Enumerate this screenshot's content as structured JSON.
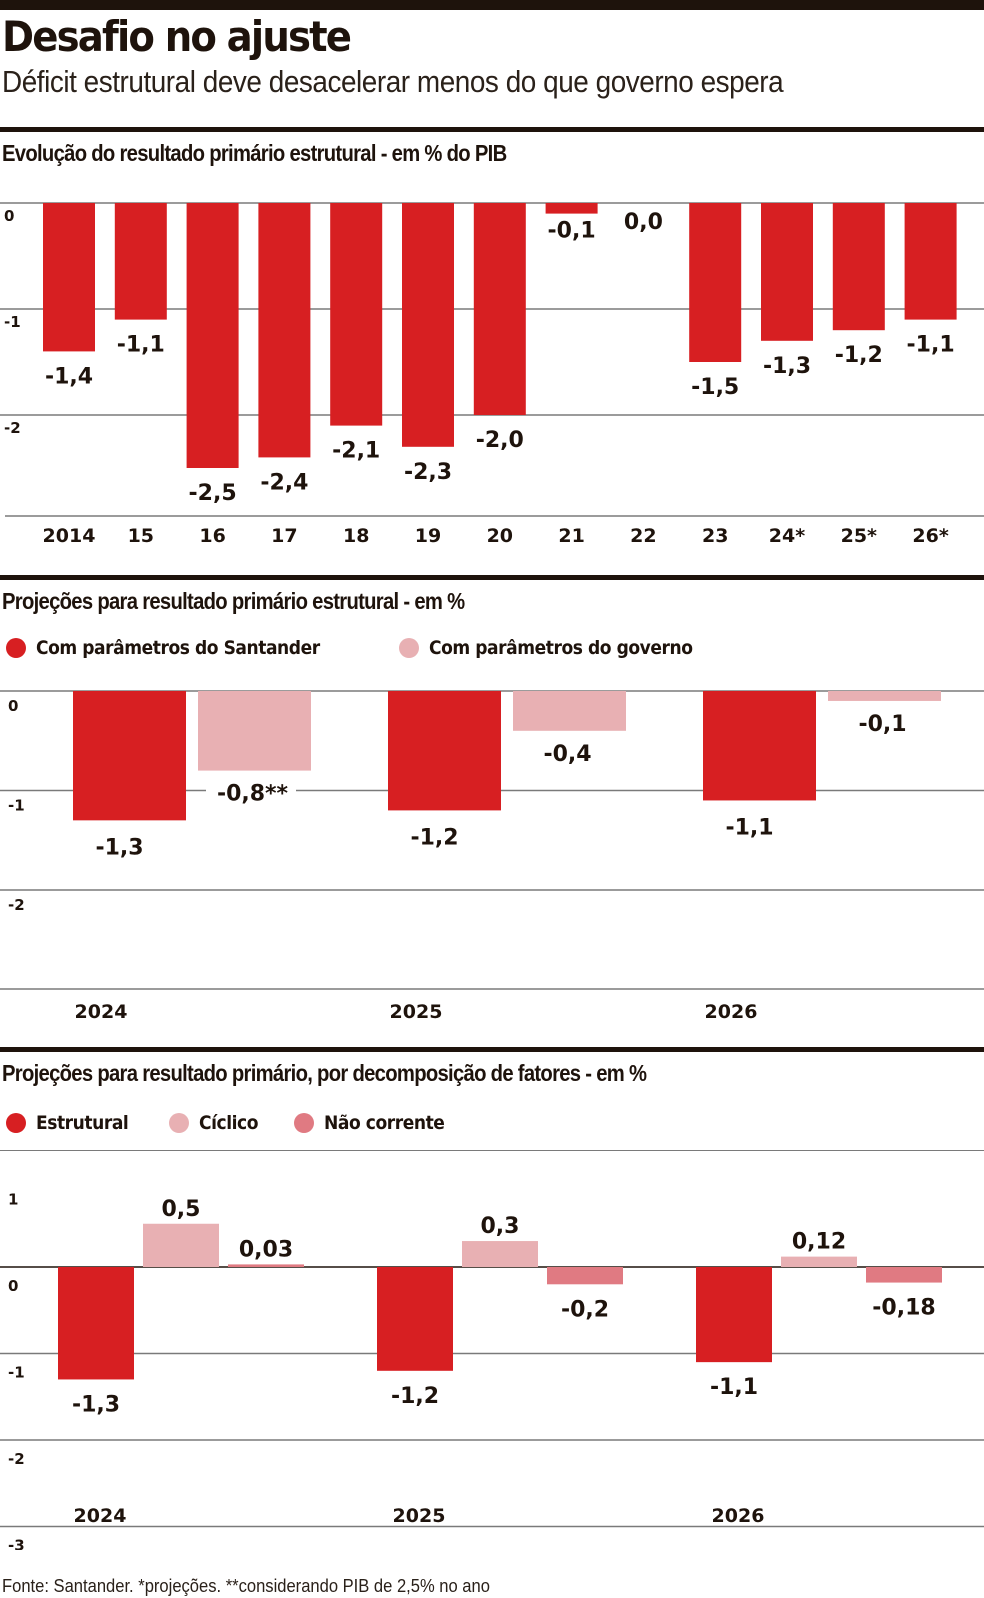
{
  "header": {
    "title": "Desafio no ajuste",
    "subtitle": "Déficit estrutural deve desacelerar menos do que governo espera"
  },
  "colors": {
    "ink": "#1e130c",
    "red": "#d71f22",
    "light_pink": "#e8b0b3",
    "mid_pink": "#e07a82",
    "grid": "#7a7a7a"
  },
  "footer": "Fonte: Santander. *projeções. **considerando PIB de 2,5% no ano",
  "chart_data": [
    {
      "type": "bar",
      "title": "Evolução do resultado primário estrutural - em % do PIB",
      "xlabel": "",
      "ylabel": "",
      "ylim": [
        -3,
        0
      ],
      "yticks": [
        0,
        -1,
        -2
      ],
      "ytick_labels": [
        "0",
        "-1",
        "-2"
      ],
      "grid": true,
      "categories": [
        "2014",
        "15",
        "16",
        "17",
        "18",
        "19",
        "20",
        "21",
        "22",
        "23",
        "24*",
        "25*",
        "26*"
      ],
      "values": [
        -1.4,
        -1.1,
        -2.5,
        -2.4,
        -2.1,
        -2.3,
        -2.0,
        -0.1,
        0.0,
        -1.5,
        -1.3,
        -1.2,
        -1.1
      ],
      "value_labels": [
        "-1,4",
        "-1,1",
        "-2,5",
        "-2,4",
        "-2,1",
        "-2,3",
        "-2,0",
        "-0,1",
        "0,0",
        "-1,5",
        "-1,3",
        "-1,2",
        "-1,1"
      ]
    },
    {
      "type": "bar",
      "title": "Projeções para resultado primário estrutural - em %",
      "xlabel": "",
      "ylabel": "",
      "ylim": [
        -3,
        0
      ],
      "yticks": [
        0,
        -1,
        -2
      ],
      "ytick_labels": [
        "0",
        "-1",
        "-2"
      ],
      "grid": true,
      "legend_position": "top-left",
      "categories": [
        "2024",
        "2025",
        "2026"
      ],
      "series": [
        {
          "name": "Com parâmetros do Santander",
          "color_key": "red",
          "values": [
            -1.3,
            -1.2,
            -1.1
          ],
          "value_labels": [
            "-1,3",
            "-1,2",
            "-1,1"
          ]
        },
        {
          "name": "Com parâmetros do governo",
          "color_key": "light_pink",
          "values": [
            -0.8,
            -0.4,
            -0.1
          ],
          "value_labels": [
            "-0,8**",
            "-0,4",
            "-0,1"
          ]
        }
      ]
    },
    {
      "type": "bar",
      "title": "Projeções para resultado primário, por decomposição de fatores - em %",
      "xlabel": "",
      "ylabel": "",
      "ylim": [
        -3,
        1
      ],
      "yticks": [
        1,
        0,
        -1,
        -2,
        -3
      ],
      "ytick_labels": [
        "1",
        "0",
        "-1",
        "-2",
        "-3"
      ],
      "grid": true,
      "legend_position": "top-left",
      "categories": [
        "2024",
        "2025",
        "2026"
      ],
      "series": [
        {
          "name": "Estrutural",
          "color_key": "red",
          "values": [
            -1.3,
            -1.2,
            -1.1
          ],
          "value_labels": [
            "-1,3",
            "-1,2",
            "-1,1"
          ]
        },
        {
          "name": "Cíclico",
          "color_key": "light_pink",
          "values": [
            0.5,
            0.3,
            0.12
          ],
          "value_labels": [
            "0,5",
            "0,3",
            "0,12"
          ]
        },
        {
          "name": "Não corrente",
          "color_key": "mid_pink",
          "values": [
            0.03,
            -0.2,
            -0.18
          ],
          "value_labels": [
            "0,03",
            "-0,2",
            "-0,18"
          ]
        }
      ]
    }
  ]
}
